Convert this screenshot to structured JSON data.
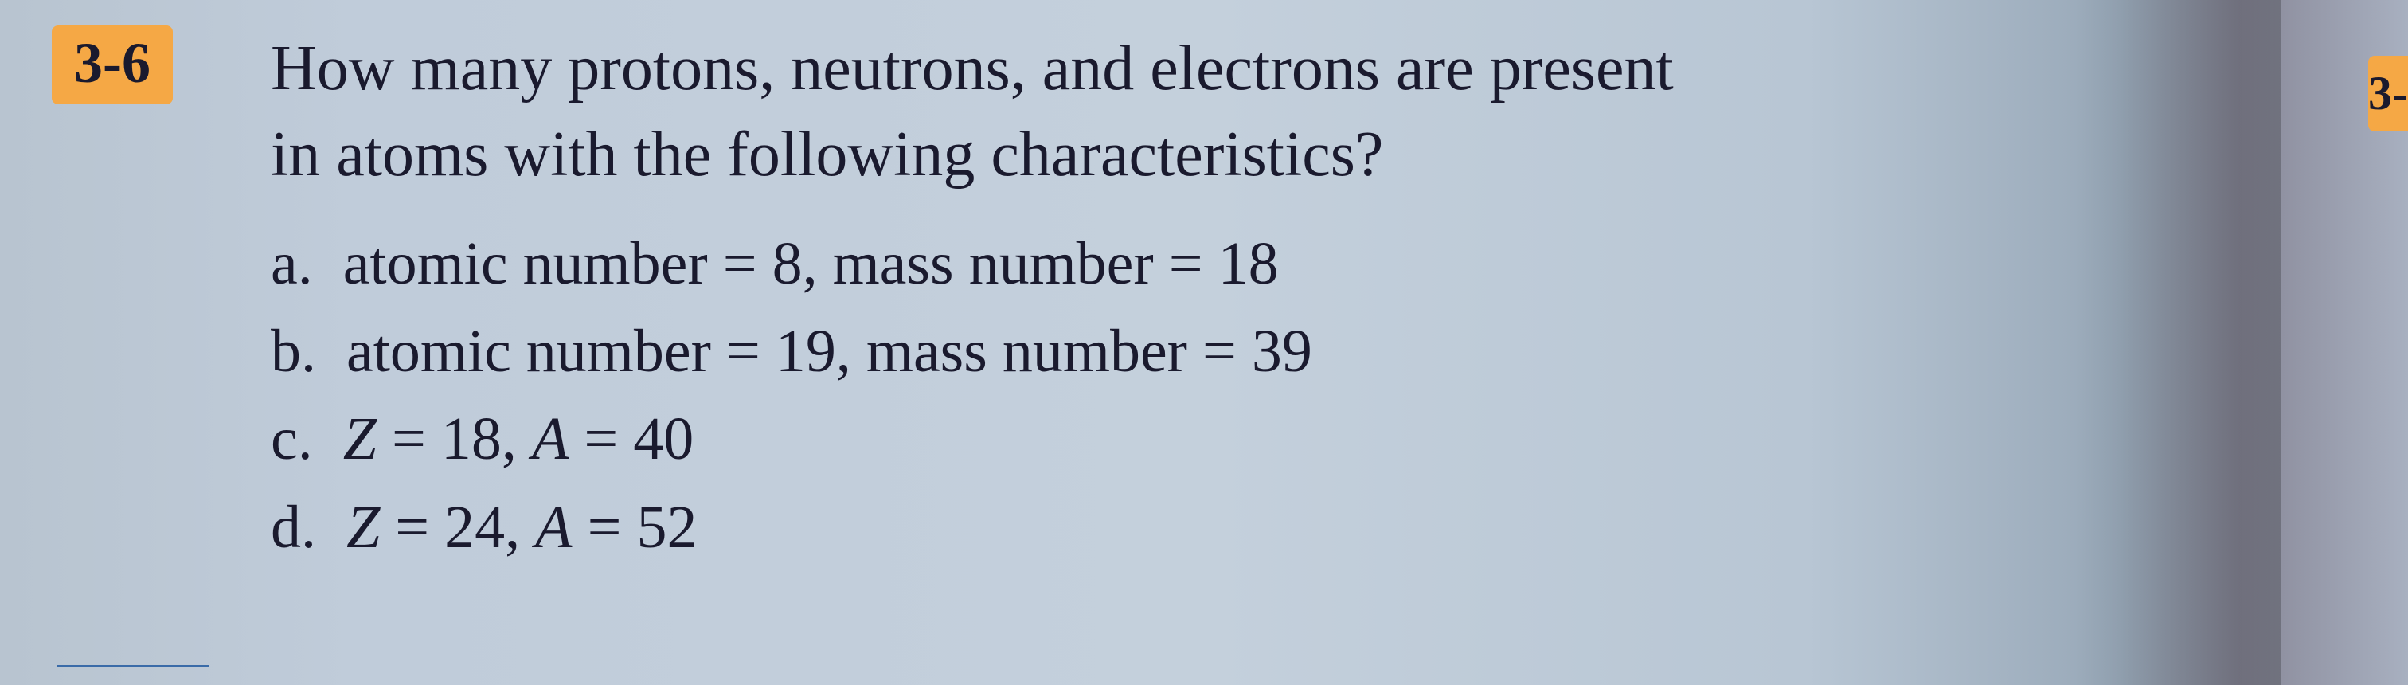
{
  "problem": {
    "number": "3-6",
    "question_line1": "How many protons, neutrons, and electrons are present",
    "question_line2": "in atoms with the following characteristics?",
    "options": {
      "a": {
        "letter": "a.",
        "text": "atomic number = 8, mass number = 18"
      },
      "b": {
        "letter": "b.",
        "text": "atomic number = 19, mass number = 39"
      },
      "c": {
        "letter": "c.",
        "z_label": "Z",
        "z_value": " = 18, ",
        "a_label": "A",
        "a_value": " = 40"
      },
      "d": {
        "letter": "d.",
        "z_label": "Z",
        "z_value": " = 24, ",
        "a_label": "A",
        "a_value": " = 52"
      }
    }
  },
  "right_tab": "3-",
  "styling": {
    "highlight_color": "#f5a845",
    "text_color": "#1a1a2e",
    "background_gradient_start": "#b8c4d0",
    "background_gradient_end": "#a8b0c0",
    "underline_color": "#3a6ba8",
    "problem_number_fontsize": 72,
    "question_fontsize": 80,
    "option_fontsize": 76,
    "font_family": "Georgia, Times New Roman, serif"
  }
}
